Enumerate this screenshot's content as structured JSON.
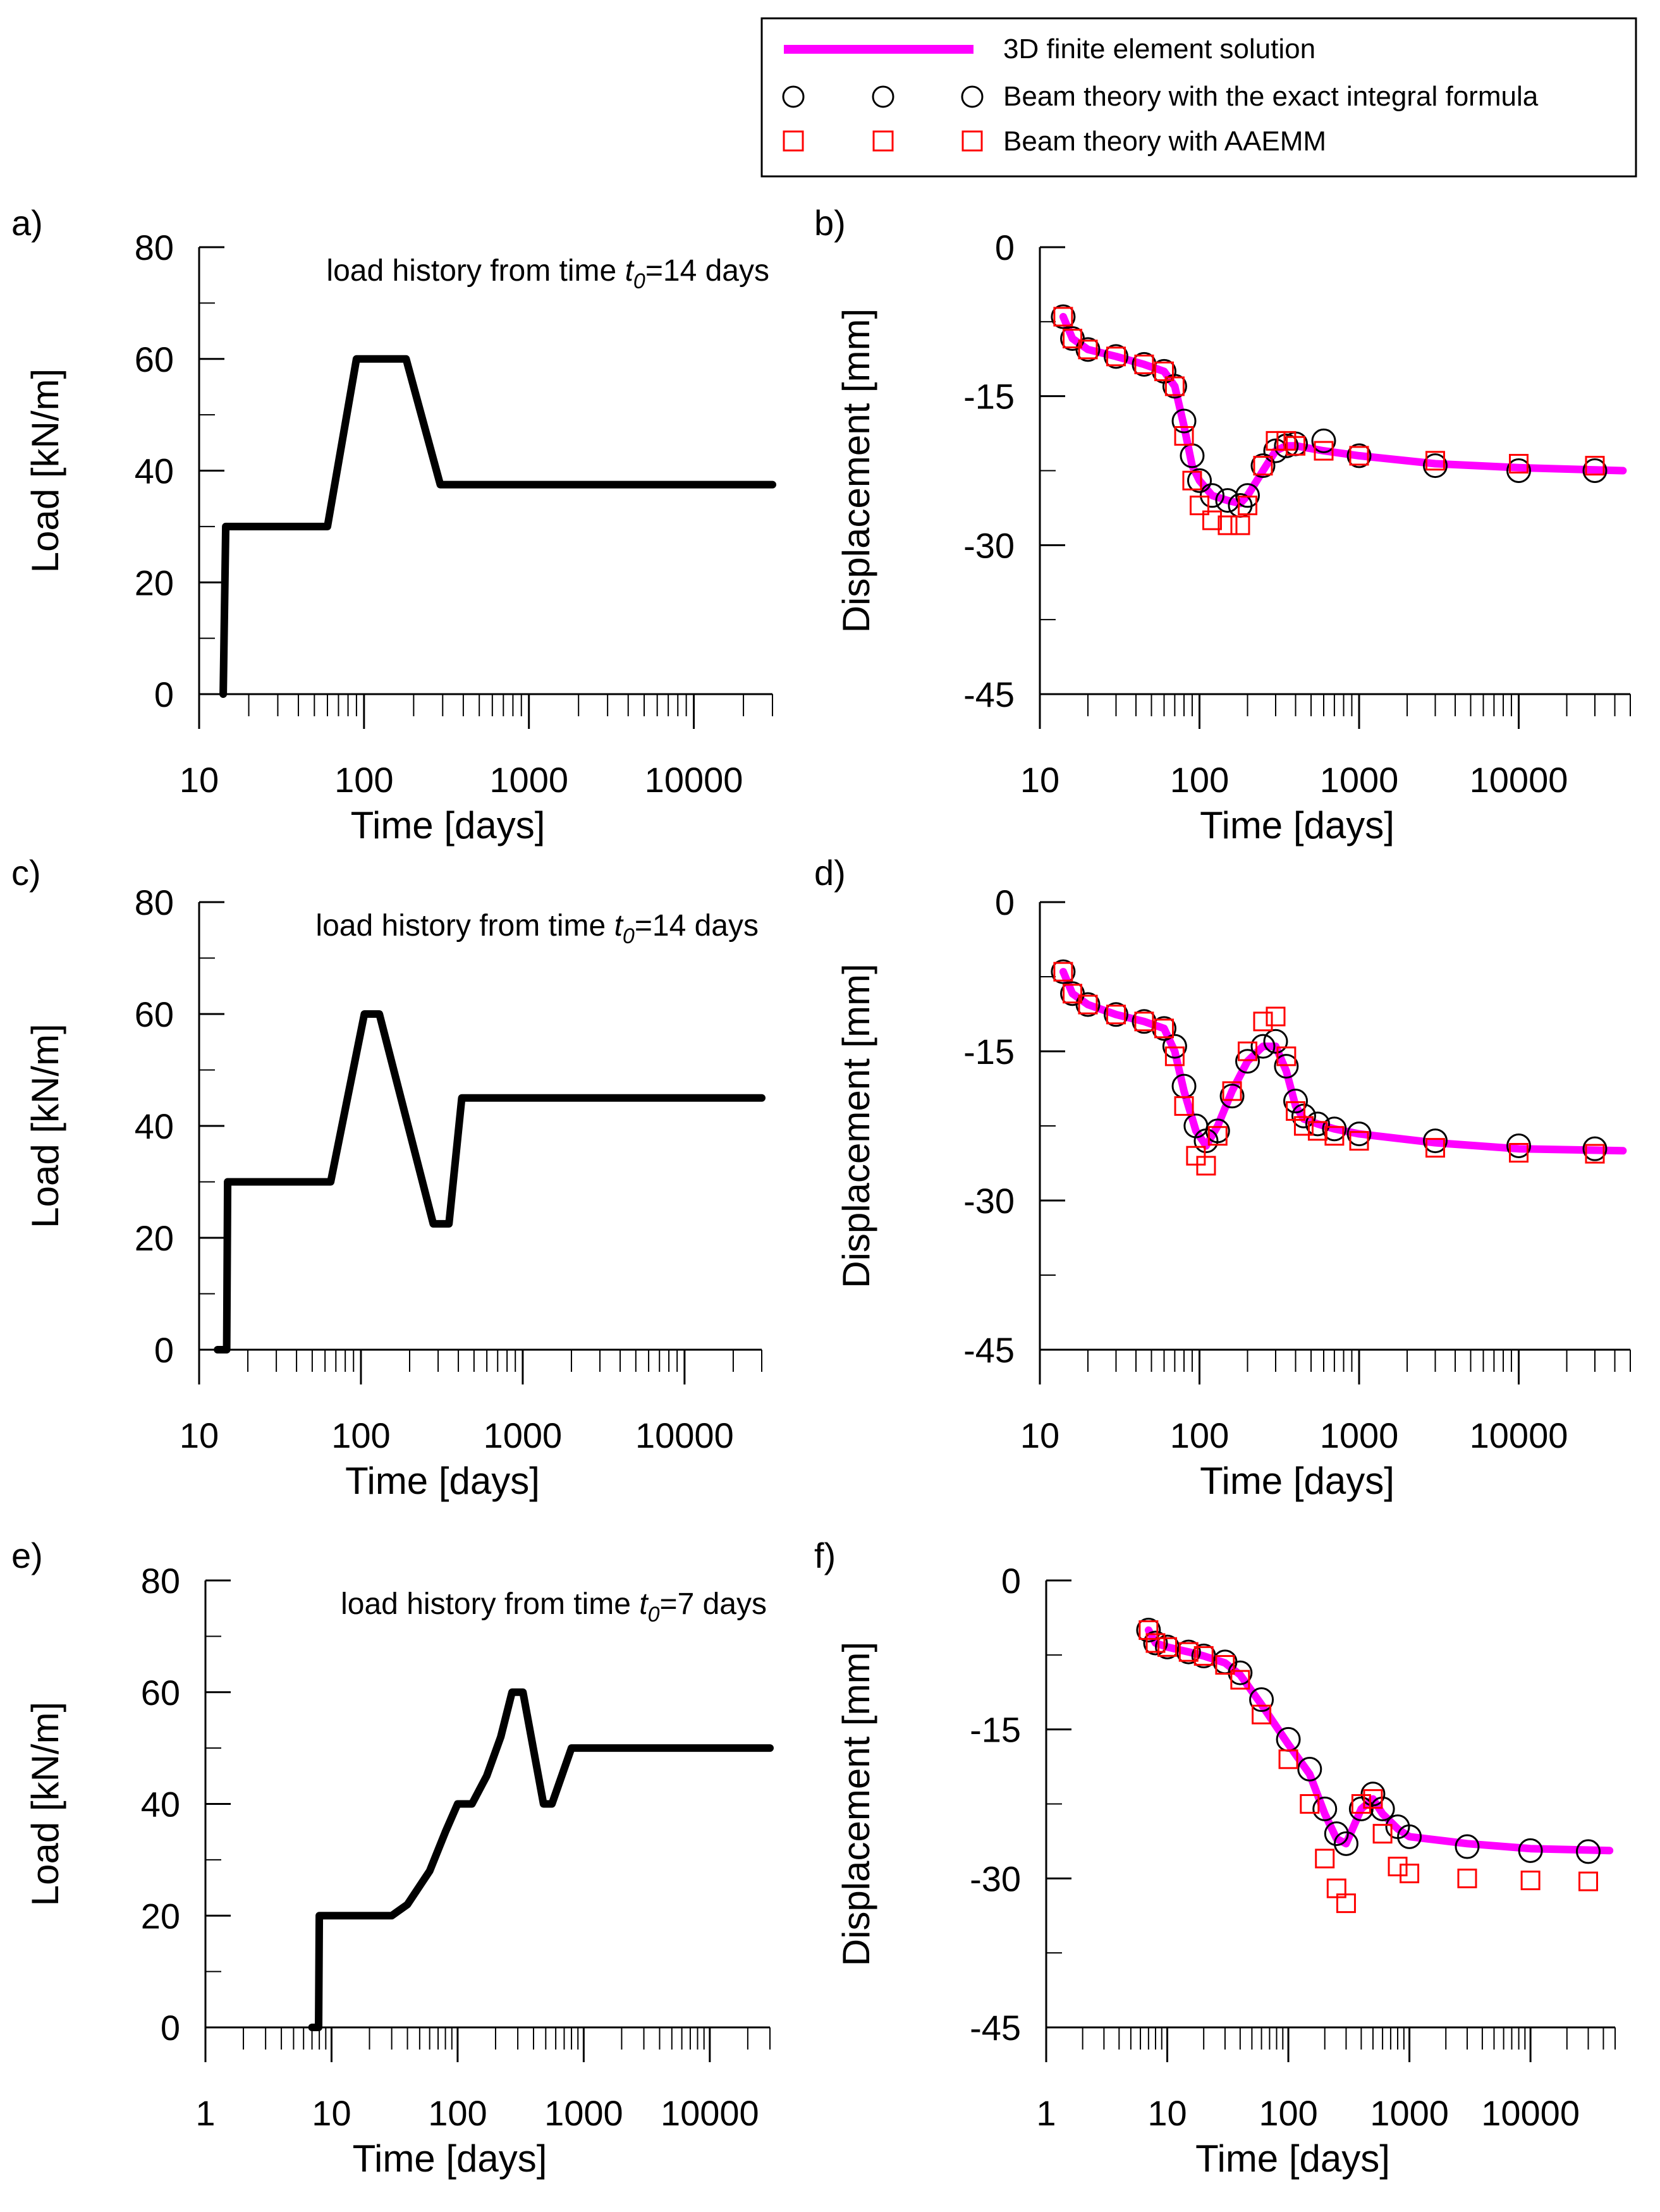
{
  "legend": {
    "entries": [
      {
        "label": "3D finite element solution",
        "style": "line",
        "color": "#ff00ff"
      },
      {
        "label": "Beam theory with the exact integral formula",
        "style": "circle",
        "color": "#000000"
      },
      {
        "label": "Beam theory with AAEMM",
        "style": "square",
        "color": "#ff0000"
      }
    ]
  },
  "chart_data": [
    {
      "id": "a",
      "panel_label": "a)",
      "type": "line",
      "annotation": {
        "prefix": "load history from time ",
        "var": "t",
        "sub": "0",
        "suffix": "=14 days"
      },
      "xlabel": "Time [days]",
      "ylabel": "Load [kN/m]",
      "xscale": "log",
      "xlim": [
        10,
        30000
      ],
      "ylim": [
        0,
        80
      ],
      "xticks": [
        10,
        100,
        1000,
        10000
      ],
      "xtick_labels": [
        "10",
        "100",
        "1000",
        "10000"
      ],
      "yticks": [
        0,
        20,
        40,
        60,
        80
      ],
      "ytick_labels": [
        "0",
        "20",
        "40",
        "60",
        "80"
      ],
      "series": [
        {
          "name": "Load",
          "color": "#000000",
          "x": [
            14,
            14.5,
            60,
            90,
            180,
            290,
            30000
          ],
          "y": [
            0,
            30,
            30,
            60,
            60,
            37.5,
            37.5
          ]
        }
      ]
    },
    {
      "id": "b",
      "panel_label": "b)",
      "type": "line",
      "xlabel": "Time [days]",
      "ylabel": "Displacement [mm]",
      "xscale": "log",
      "xlim": [
        10,
        50000
      ],
      "ylim": [
        -45,
        0
      ],
      "xticks": [
        10,
        100,
        1000,
        10000
      ],
      "xtick_labels": [
        "10",
        "100",
        "1000",
        "10000"
      ],
      "yticks": [
        0,
        -15,
        -30,
        -45
      ],
      "ytick_labels": [
        "0",
        "-15",
        "-30",
        "-45"
      ],
      "series": [
        {
          "name": "3D finite element solution",
          "color": "#ff00ff",
          "x": [
            14,
            16,
            20,
            30,
            45,
            60,
            70,
            80,
            90,
            100,
            120,
            150,
            180,
            200,
            250,
            300,
            350,
            400,
            600,
            1000,
            3000,
            10000,
            45000
          ],
          "y": [
            -7,
            -9.2,
            -10.3,
            -11,
            -11.8,
            -12.5,
            -14,
            -18,
            -22,
            -23.5,
            -25,
            -25.5,
            -25.8,
            -25,
            -22.5,
            -20.5,
            -20,
            -20,
            -20.5,
            -21,
            -21.8,
            -22.2,
            -22.5
          ]
        },
        {
          "name": "Beam theory with the exact integral formula",
          "color": "#000000",
          "x": [
            14,
            16,
            20,
            30,
            45,
            60,
            70,
            80,
            90,
            100,
            120,
            150,
            180,
            200,
            250,
            300,
            350,
            400,
            600,
            1000,
            3000,
            10000,
            30000
          ],
          "y": [
            -7,
            -9.2,
            -10.3,
            -11,
            -11.8,
            -12.5,
            -14,
            -17.5,
            -21,
            -23.5,
            -25,
            -25.5,
            -26,
            -25,
            -22,
            -20.5,
            -20,
            -19.8,
            -19.5,
            -21,
            -22,
            -22.5,
            -22.5
          ]
        },
        {
          "name": "Beam theory with AAEMM",
          "color": "#ff0000",
          "x": [
            14,
            16,
            20,
            30,
            45,
            60,
            70,
            80,
            90,
            100,
            120,
            150,
            180,
            200,
            250,
            300,
            350,
            400,
            600,
            1000,
            3000,
            10000,
            30000
          ],
          "y": [
            -7,
            -9.2,
            -10.3,
            -11,
            -11.8,
            -12.5,
            -14,
            -19,
            -23.5,
            -26,
            -27.5,
            -28,
            -28,
            -26,
            -22,
            -19.5,
            -19.5,
            -20,
            -20.5,
            -21,
            -21.5,
            -21.8,
            -22
          ]
        }
      ]
    },
    {
      "id": "c",
      "panel_label": "c)",
      "type": "line",
      "annotation": {
        "prefix": "load history from time ",
        "var": "t",
        "sub": "0",
        "suffix": "=14 days"
      },
      "xlabel": "Time [days]",
      "ylabel": "Load [kN/m]",
      "xscale": "log",
      "xlim": [
        10,
        30000
      ],
      "ylim": [
        0,
        80
      ],
      "xticks": [
        10,
        100,
        1000,
        10000
      ],
      "xtick_labels": [
        "10",
        "100",
        "1000",
        "10000"
      ],
      "yticks": [
        0,
        20,
        40,
        60,
        80
      ],
      "ytick_labels": [
        "0",
        "20",
        "40",
        "60",
        "80"
      ],
      "series": [
        {
          "name": "Load",
          "color": "#000000",
          "x": [
            13,
            14.8,
            15,
            65,
            105,
            130,
            280,
            350,
            420,
            30000
          ],
          "y": [
            0,
            0,
            30,
            30,
            60,
            60,
            22.5,
            22.5,
            45,
            45
          ]
        }
      ]
    },
    {
      "id": "d",
      "panel_label": "d)",
      "type": "line",
      "xlabel": "Time [days]",
      "ylabel": "Displacement [mm]",
      "xscale": "log",
      "xlim": [
        10,
        50000
      ],
      "ylim": [
        -45,
        0
      ],
      "xticks": [
        10,
        100,
        1000,
        10000
      ],
      "xtick_labels": [
        "10",
        "100",
        "1000",
        "10000"
      ],
      "yticks": [
        0,
        -15,
        -30,
        -45
      ],
      "ytick_labels": [
        "0",
        "-15",
        "-30",
        "-45"
      ],
      "series": [
        {
          "name": "3D finite element solution",
          "color": "#ff00ff",
          "x": [
            14,
            16,
            20,
            30,
            45,
            60,
            70,
            80,
            95,
            110,
            130,
            160,
            200,
            250,
            300,
            350,
            400,
            450,
            550,
            700,
            1000,
            3000,
            10000,
            45000
          ],
          "y": [
            -7,
            -9.2,
            -10.3,
            -11.3,
            -12,
            -12.7,
            -15,
            -19,
            -23,
            -24.5,
            -22.5,
            -19,
            -16,
            -14.5,
            -14.5,
            -17,
            -20.5,
            -21.8,
            -22.3,
            -22.8,
            -23.3,
            -24.2,
            -24.8,
            -25
          ]
        },
        {
          "name": "Beam theory with the exact integral formula",
          "color": "#000000",
          "x": [
            14,
            16,
            20,
            30,
            45,
            60,
            70,
            80,
            95,
            110,
            130,
            160,
            200,
            250,
            300,
            350,
            400,
            450,
            550,
            700,
            1000,
            3000,
            10000,
            30000
          ],
          "y": [
            -7,
            -9.2,
            -10.3,
            -11.3,
            -12,
            -12.7,
            -14.5,
            -18.5,
            -22.5,
            -24,
            -23,
            -19.5,
            -16,
            -14.5,
            -14,
            -16.5,
            -20,
            -21.5,
            -22.3,
            -22.8,
            -23.3,
            -24,
            -24.5,
            -24.8
          ]
        },
        {
          "name": "Beam theory with AAEMM",
          "color": "#ff0000",
          "x": [
            14,
            16,
            20,
            30,
            45,
            60,
            70,
            80,
            95,
            110,
            130,
            160,
            200,
            250,
            300,
            350,
            400,
            450,
            550,
            700,
            1000,
            3000,
            10000,
            30000
          ],
          "y": [
            -7,
            -9.2,
            -10.3,
            -11.3,
            -12,
            -12.7,
            -15.5,
            -20.5,
            -25.5,
            -26.5,
            -23.5,
            -19,
            -15,
            -12,
            -11.5,
            -15.5,
            -21,
            -22.5,
            -23,
            -23.5,
            -24,
            -24.7,
            -25.2,
            -25.3
          ]
        }
      ]
    },
    {
      "id": "e",
      "panel_label": "e)",
      "type": "line",
      "annotation": {
        "prefix": "load history from time ",
        "var": "t",
        "sub": "0",
        "suffix": "=7 days"
      },
      "xlabel": "Time [days]",
      "ylabel": "Load [kN/m]",
      "xscale": "log",
      "xlim": [
        1,
        30000
      ],
      "ylim": [
        0,
        80
      ],
      "xticks": [
        1,
        10,
        100,
        1000,
        10000
      ],
      "xtick_labels": [
        "1",
        "10",
        "100",
        "1000",
        "10000"
      ],
      "yticks": [
        0,
        20,
        40,
        60,
        80
      ],
      "ytick_labels": [
        "0",
        "20",
        "40",
        "60",
        "80"
      ],
      "series": [
        {
          "name": "Load",
          "color": "#000000",
          "x": [
            7,
            7.9,
            8,
            30,
            40,
            60,
            80,
            100,
            130,
            170,
            220,
            270,
            330,
            480,
            560,
            800,
            30000
          ],
          "y": [
            0,
            0,
            20,
            20,
            22,
            28,
            35,
            40,
            40,
            45,
            52,
            60,
            60,
            40,
            40,
            50,
            50
          ]
        }
      ]
    },
    {
      "id": "f",
      "panel_label": "f)",
      "type": "line",
      "xlabel": "Time [days]",
      "ylabel": "Displacement [mm]",
      "xscale": "log",
      "xlim": [
        1,
        50000
      ],
      "ylim": [
        -45,
        0
      ],
      "xticks": [
        1,
        10,
        100,
        1000,
        10000
      ],
      "xtick_labels": [
        "1",
        "10",
        "100",
        "1000",
        "10000"
      ],
      "yticks": [
        0,
        -15,
        -30,
        -45
      ],
      "ytick_labels": [
        "0",
        "-15",
        "-30",
        "-45"
      ],
      "series": [
        {
          "name": "3D finite element solution",
          "color": "#ff00ff",
          "x": [
            7,
            8,
            10,
            15,
            20,
            30,
            40,
            60,
            100,
            150,
            200,
            250,
            300,
            400,
            500,
            600,
            800,
            1000,
            3000,
            10000,
            45000
          ],
          "y": [
            -5,
            -6.3,
            -6.7,
            -7.2,
            -7.6,
            -8.3,
            -9.5,
            -12.5,
            -16.5,
            -19.5,
            -23.5,
            -26,
            -26.5,
            -23,
            -22,
            -23.5,
            -25,
            -25.8,
            -26.5,
            -27,
            -27.2
          ]
        },
        {
          "name": "Beam theory with the exact integral formula",
          "color": "#000000",
          "x": [
            7,
            8,
            10,
            15,
            20,
            30,
            40,
            60,
            100,
            150,
            200,
            250,
            300,
            400,
            500,
            600,
            800,
            1000,
            3000,
            10000,
            30000
          ],
          "y": [
            -5,
            -6.3,
            -6.7,
            -7.2,
            -7.6,
            -8.2,
            -9.3,
            -12,
            -16,
            -19,
            -23,
            -25.5,
            -26.5,
            -23,
            -21.5,
            -23,
            -24.8,
            -25.8,
            -26.8,
            -27.2,
            -27.3
          ]
        },
        {
          "name": "Beam theory with AAEMM",
          "color": "#ff0000",
          "x": [
            7,
            8,
            10,
            15,
            20,
            30,
            40,
            60,
            100,
            150,
            200,
            250,
            300,
            400,
            500,
            600,
            800,
            1000,
            3000,
            10000,
            30000
          ],
          "y": [
            -5,
            -6.3,
            -6.7,
            -7.2,
            -7.6,
            -8.5,
            -10,
            -13.5,
            -18,
            -22.5,
            -28,
            -31,
            -32.5,
            -22.5,
            -22,
            -25.5,
            -28.8,
            -29.5,
            -30,
            -30.2,
            -30.3
          ]
        }
      ]
    }
  ]
}
